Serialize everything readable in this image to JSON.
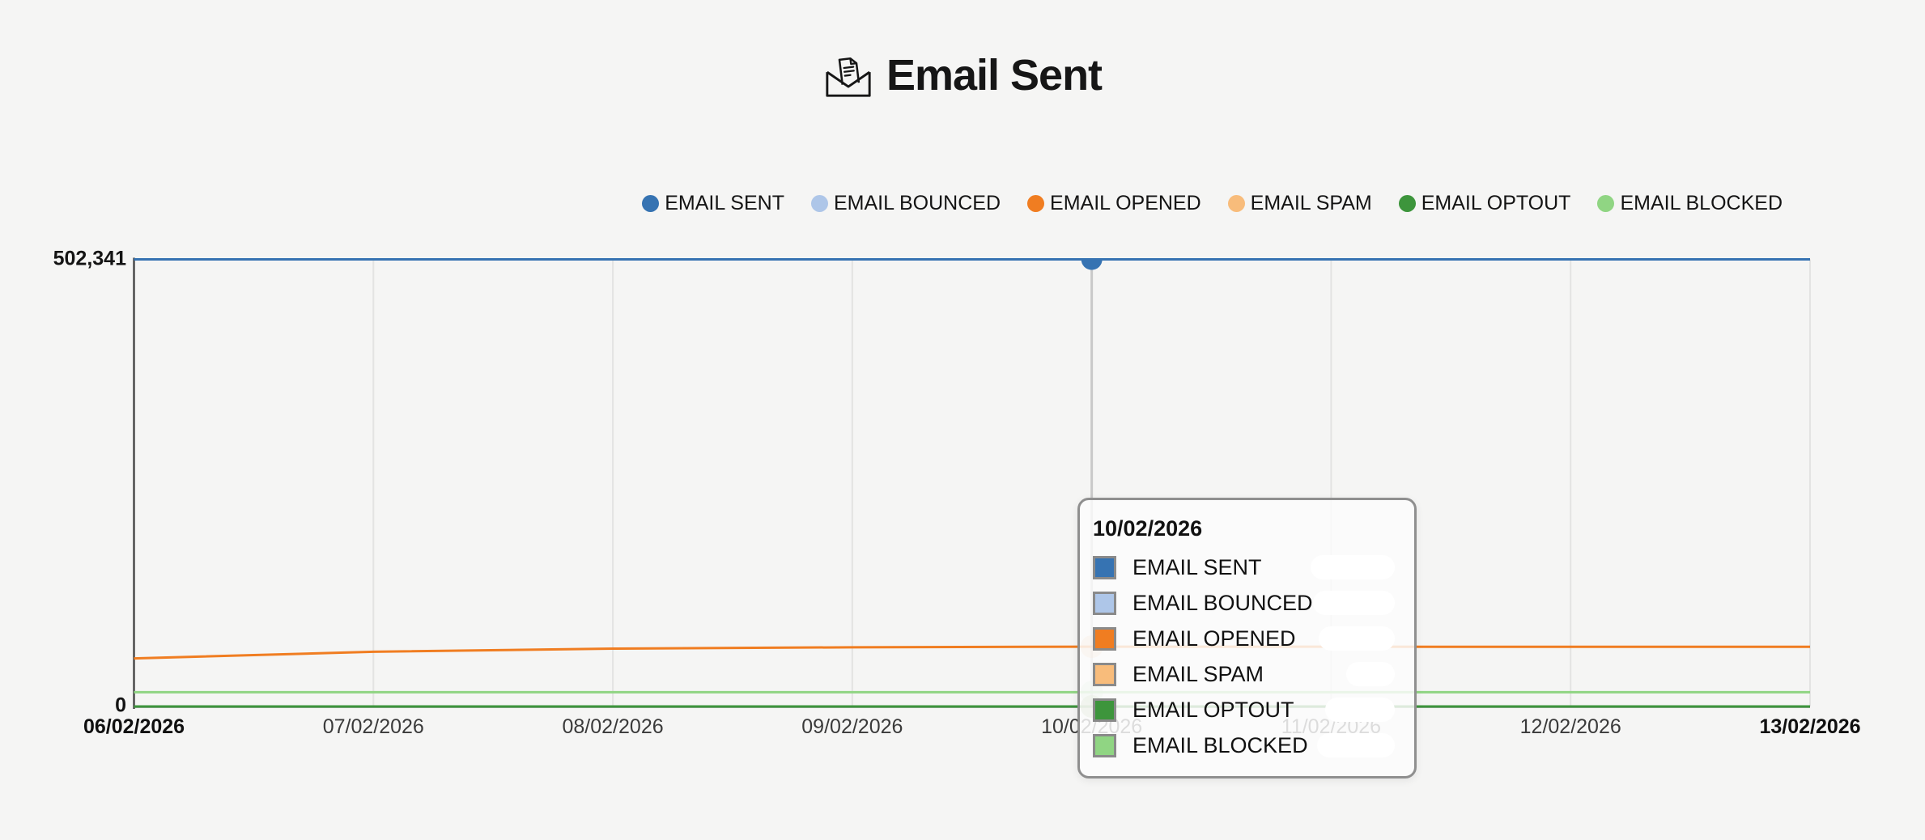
{
  "title": {
    "text": "Email Sent",
    "icon": "email-sent-icon"
  },
  "colors": {
    "background": "#f5f5f4",
    "gridline": "#e3e3e2",
    "crosshair": "#c9c9c9",
    "axis": "#4b4b4b"
  },
  "legend": {
    "items": [
      {
        "label": "EMAIL SENT",
        "color": "#3673b2"
      },
      {
        "label": "EMAIL BOUNCED",
        "color": "#aec6e8"
      },
      {
        "label": "EMAIL OPENED",
        "color": "#f07d21"
      },
      {
        "label": "EMAIL SPAM",
        "color": "#f8bc7b"
      },
      {
        "label": "EMAIL OPTOUT",
        "color": "#3d953c"
      },
      {
        "label": "EMAIL BLOCKED",
        "color": "#90d583"
      }
    ]
  },
  "chart_data": {
    "type": "line",
    "title": "Email Sent",
    "x": [
      "06/02/2026",
      "07/02/2026",
      "08/02/2026",
      "09/02/2026",
      "10/02/2026",
      "11/02/2026",
      "12/02/2026",
      "13/02/2026"
    ],
    "series": [
      {
        "name": "EMAIL SENT",
        "color": "#3673b2",
        "values": [
          502341,
          502341,
          502341,
          502341,
          502341,
          502341,
          502341,
          502341
        ]
      },
      {
        "name": "EMAIL BOUNCED",
        "color": "#aec6e8",
        "values": [
          0,
          0,
          0,
          0,
          0,
          0,
          0,
          0
        ]
      },
      {
        "name": "EMAIL OPENED",
        "color": "#f07d21",
        "values": [
          54000,
          61500,
          65000,
          66500,
          67200,
          67200,
          67000,
          67000
        ]
      },
      {
        "name": "EMAIL SPAM",
        "color": "#f8bc7b",
        "values": [
          0,
          0,
          0,
          0,
          0,
          0,
          0,
          0
        ]
      },
      {
        "name": "EMAIL OPTOUT",
        "color": "#3d953c",
        "values": [
          0,
          0,
          0,
          0,
          0,
          0,
          0,
          0
        ]
      },
      {
        "name": "EMAIL BLOCKED",
        "color": "#90d583",
        "values": [
          16000,
          16000,
          16000,
          16000,
          16000,
          16000,
          16000,
          16000
        ]
      }
    ],
    "ylim": [
      0,
      502341
    ],
    "yaxis_labels": {
      "max": "502,341",
      "min": "0"
    },
    "grid": "vertical",
    "legend_position": "top-right",
    "highlight_index": 4,
    "highlight_label": "10/02/2026"
  },
  "xaxis": {
    "bold": [
      true,
      false,
      false,
      false,
      false,
      false,
      false,
      true
    ]
  },
  "tooltip": {
    "header": "10/02/2026",
    "values_redacted": true,
    "rows": [
      {
        "label": "EMAIL SENT",
        "color": "#3673b2",
        "value_redacted": true,
        "blur_width": 104
      },
      {
        "label": "EMAIL BOUNCED",
        "color": "#aec6e8",
        "value_redacted": true,
        "blur_width": 101
      },
      {
        "label": "EMAIL OPENED",
        "color": "#f07d21",
        "value_redacted": true,
        "blur_width": 94
      },
      {
        "label": "EMAIL SPAM",
        "color": "#f8bc7b",
        "value_redacted": true,
        "blur_width": 60
      },
      {
        "label": "EMAIL OPTOUT",
        "color": "#3d953c",
        "value_redacted": true,
        "blur_width": 86
      },
      {
        "label": "EMAIL BLOCKED",
        "color": "#90d583",
        "value_redacted": true,
        "blur_width": 96
      }
    ]
  }
}
